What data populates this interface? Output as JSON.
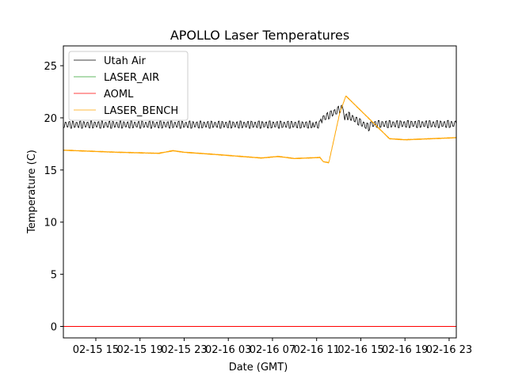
{
  "chart_data": {
    "type": "line",
    "title": "APOLLO Laser Temperatures",
    "xlabel": "Date (GMT)",
    "ylabel": "Temperature (C)",
    "x_units": "hours since 02-15 00:00 GMT",
    "xlim": [
      12.06,
      47.65
    ],
    "ylim": [
      -1.1,
      26.9
    ],
    "yticks": [
      0,
      5,
      10,
      15,
      20,
      25
    ],
    "xticks": [
      {
        "value": 15,
        "label": "02-15 15"
      },
      {
        "value": 19,
        "label": "02-15 19"
      },
      {
        "value": 23,
        "label": "02-15 23"
      },
      {
        "value": 27,
        "label": "02-16 03"
      },
      {
        "value": 31,
        "label": "02-16 07"
      },
      {
        "value": 35,
        "label": "02-16 11"
      },
      {
        "value": 39,
        "label": "02-16 15"
      },
      {
        "value": 43,
        "label": "02-16 19"
      },
      {
        "value": 47,
        "label": "02-16 23"
      }
    ],
    "grid": false,
    "legend_position": "top-left",
    "series": [
      {
        "name": "Utah Air",
        "color": "#000000",
        "oscillation": 0.35,
        "period_h": 0.33,
        "points": [
          [
            12.06,
            19.35
          ],
          [
            35.3,
            19.35
          ],
          [
            35.5,
            19.9
          ],
          [
            37.4,
            21.0
          ],
          [
            37.55,
            20.0
          ],
          [
            37.9,
            20.2
          ],
          [
            39.7,
            19.1
          ],
          [
            40.0,
            19.4
          ],
          [
            47.65,
            19.4
          ]
        ]
      },
      {
        "name": "LASER_AIR",
        "color": "#2ca02c",
        "points": []
      },
      {
        "name": "AOML",
        "color": "#ff0000",
        "oscillation": 0,
        "points": [
          [
            12.06,
            0
          ],
          [
            47.65,
            0
          ]
        ]
      },
      {
        "name": "LASER_BENCH",
        "color": "#ffa500",
        "oscillation": 0.03,
        "period_h": 0.1,
        "points": [
          [
            12.06,
            16.9
          ],
          [
            17,
            16.7
          ],
          [
            20.7,
            16.6
          ],
          [
            22.0,
            16.85
          ],
          [
            23,
            16.7
          ],
          [
            25.7,
            16.5
          ],
          [
            30,
            16.15
          ],
          [
            31.5,
            16.3
          ],
          [
            33,
            16.1
          ],
          [
            35.3,
            16.2
          ],
          [
            35.6,
            15.8
          ],
          [
            36.1,
            15.7
          ],
          [
            37.1,
            20.5
          ],
          [
            37.65,
            22.1
          ],
          [
            41.6,
            18.0
          ],
          [
            43,
            17.9
          ],
          [
            47.65,
            18.1
          ]
        ]
      }
    ]
  }
}
